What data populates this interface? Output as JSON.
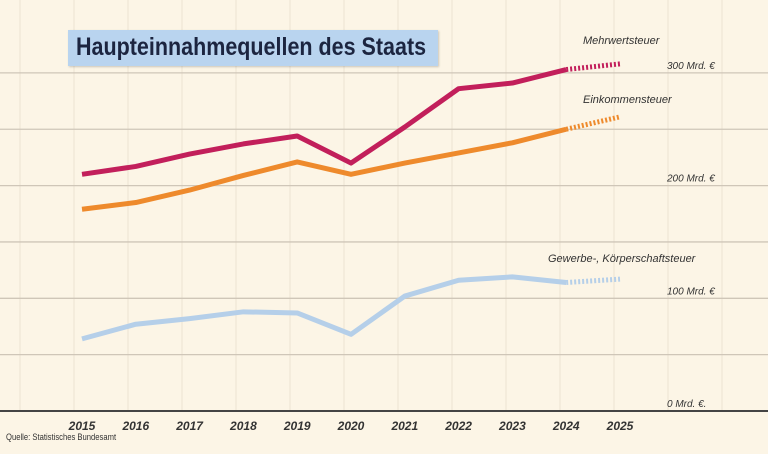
{
  "chart_data": {
    "type": "line",
    "title": "Haupteinnahmequellen des Staats",
    "source": "Quelle: Statistisches Bundesamt",
    "categories": [
      "2015",
      "2016",
      "2017",
      "2018",
      "2019",
      "2020",
      "2021",
      "2022",
      "2023",
      "2024",
      "2025"
    ],
    "y_ticks": [
      {
        "value": 0,
        "label": "0 Mrd. €."
      },
      {
        "value": 100,
        "label": "100 Mrd. €"
      },
      {
        "value": 200,
        "label": "200 Mrd. €"
      },
      {
        "value": 300,
        "label": "300 Mrd. €"
      }
    ],
    "ylim": [
      0,
      300
    ],
    "grid": true,
    "projected_from": "2024",
    "series": [
      {
        "name": "Mehrwertsteuer",
        "color": "#c21f5b",
        "values": [
          210,
          217,
          228,
          237,
          244,
          220,
          252,
          286,
          291,
          303,
          308
        ]
      },
      {
        "name": "Einkommensteuer",
        "color": "#ee8a2c",
        "values": [
          179,
          185,
          196,
          209,
          221,
          210,
          220,
          229,
          238,
          250,
          261
        ]
      },
      {
        "name": "Gewerbe-, Körperschaftsteuer",
        "color": "#b5cfe9",
        "values": [
          64,
          77,
          82,
          88,
          87,
          68,
          102,
          116,
          119,
          114,
          117
        ]
      }
    ]
  }
}
